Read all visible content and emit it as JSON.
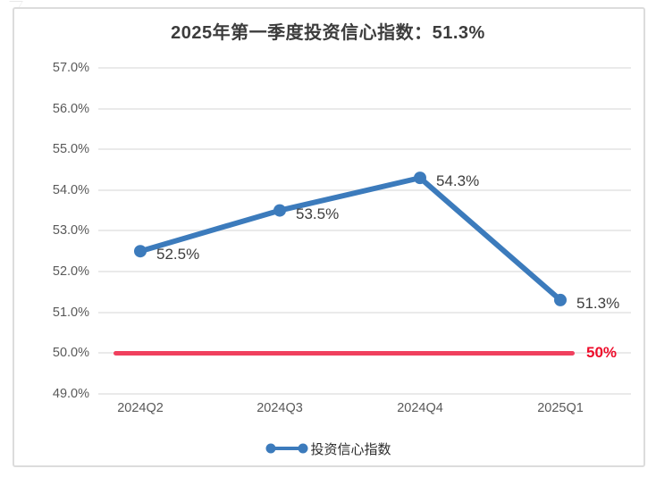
{
  "chart_data": {
    "type": "line",
    "title": "2025年第一季度投资信心指数：51.3%",
    "categories": [
      "2024Q2",
      "2024Q3",
      "2024Q4",
      "2025Q1"
    ],
    "series": [
      {
        "name": "投资信心指数",
        "values": [
          52.5,
          53.5,
          54.3,
          51.3
        ],
        "color": "#3c7bbc"
      }
    ],
    "point_labels": [
      "52.5%",
      "53.5%",
      "54.3%",
      "51.3%"
    ],
    "ylim": [
      49.0,
      57.0
    ],
    "ytick_step": 1.0,
    "ytick_labels": [
      "57.0%",
      "56.0%",
      "55.0%",
      "54.0%",
      "53.0%",
      "52.0%",
      "51.0%",
      "50.0%",
      "49.0%"
    ],
    "grid": true,
    "legend_position": "bottom",
    "reference_line": {
      "value": 50.0,
      "label": "50%",
      "line_color": "#f0405e",
      "label_color": "#ee0d2b"
    }
  },
  "legend": {
    "label": "投资信心指数"
  },
  "colors": {
    "series_blue": "#3c7bbc",
    "reference_red": "#f0405e",
    "grid_gray": "#eaeaea",
    "panel_border": "#dcdcdc",
    "axis_text": "#595959",
    "title_text": "#3c3c3c"
  }
}
